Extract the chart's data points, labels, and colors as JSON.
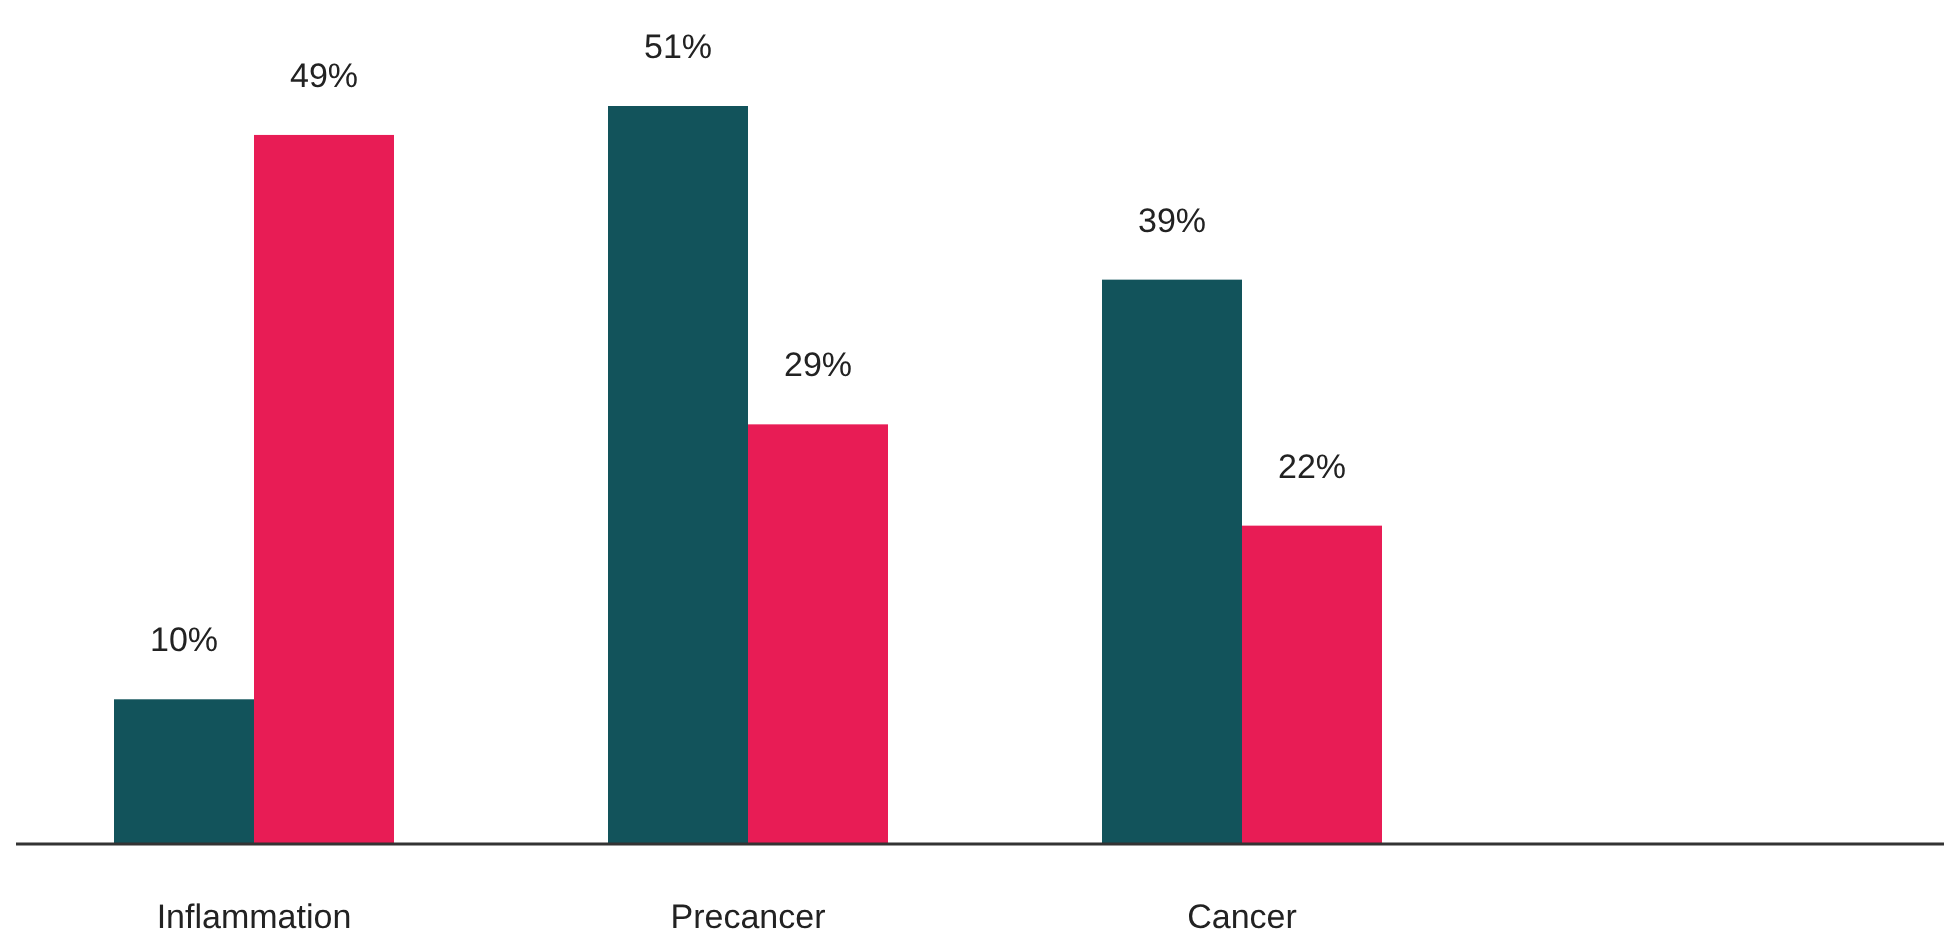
{
  "chart_data": {
    "type": "bar",
    "categories": [
      "Inflammation",
      "Precancer",
      "Cancer"
    ],
    "series": [
      {
        "color": "#12535b",
        "values": [
          10,
          51,
          39
        ],
        "value_labels": [
          "10%",
          "51%",
          "39%"
        ]
      },
      {
        "color": "#e81c55",
        "values": [
          49,
          29,
          22
        ],
        "value_labels": [
          "49%",
          "29%",
          "22%"
        ]
      }
    ]
  }
}
